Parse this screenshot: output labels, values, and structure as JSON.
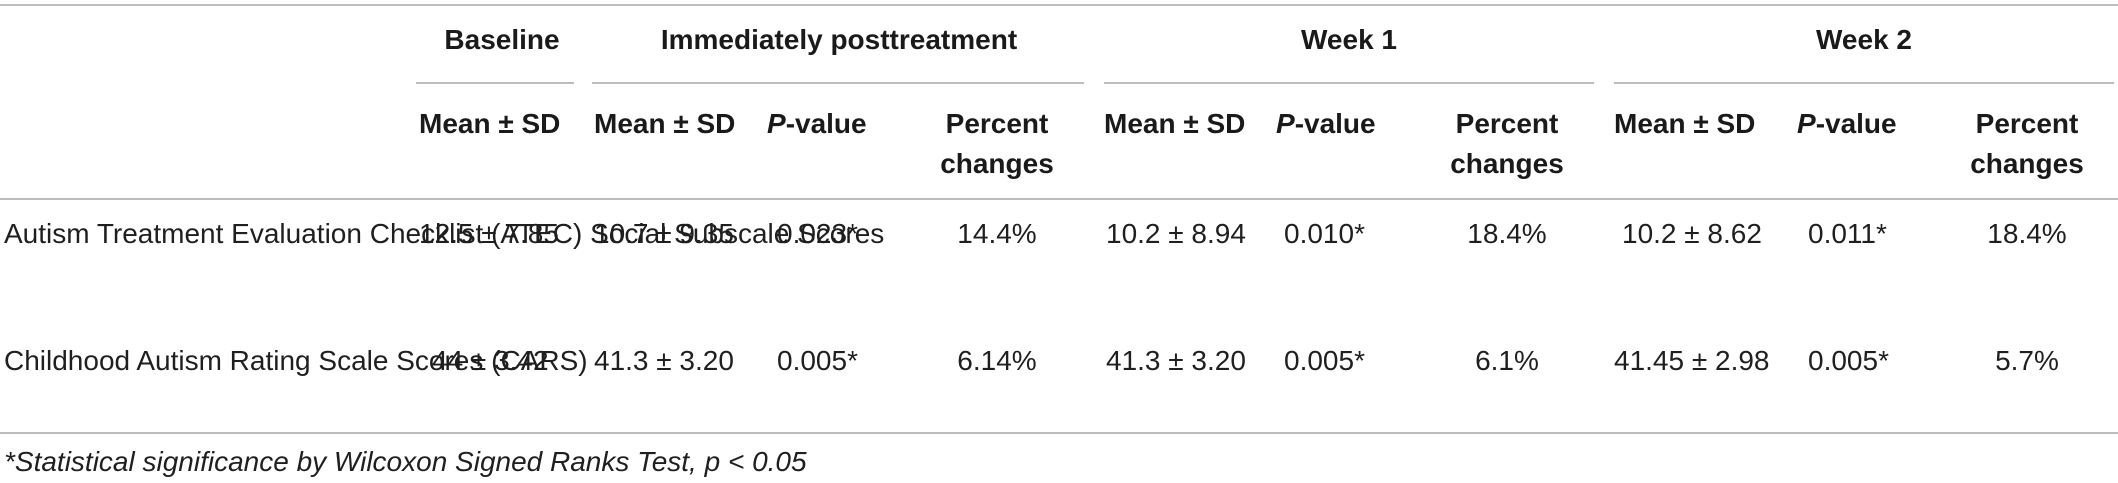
{
  "table": {
    "group_headers": {
      "baseline": "Baseline",
      "immediate": "Immediately posttreatment",
      "week1": "Week 1",
      "week2": "Week 2"
    },
    "sub_headers": {
      "mean_sd": "Mean ± SD",
      "p_value_italic": "P",
      "p_value_rest": "-value",
      "percent_line1": "Percent",
      "percent_line2": "changes"
    },
    "rows": [
      {
        "label": "Autism Treatment Evaluation Checklist (ATEC) Social Subscale Scores",
        "baseline": "12.5 ± 7.85",
        "immediate": {
          "mean_sd": "10.7 ± 9.35",
          "p": "0.023*",
          "pct": "14.4%"
        },
        "week1": {
          "mean_sd": "10.2 ± 8.94",
          "p": "0.010*",
          "pct": "18.4%"
        },
        "week2": {
          "mean_sd": "10.2 ± 8.62",
          "p": "0.011*",
          "pct": "18.4%"
        }
      },
      {
        "label": "Childhood Autism Rating Scale Scores (CARS)",
        "baseline": "44 ± 3.42",
        "immediate": {
          "mean_sd": "41.3 ± 3.20",
          "p": "0.005*",
          "pct": "6.14%"
        },
        "week1": {
          "mean_sd": "41.3 ± 3.20",
          "p": "0.005*",
          "pct": "6.1%"
        },
        "week2": {
          "mean_sd": "41.45 ± 2.98",
          "p": "0.005*",
          "pct": "5.7%"
        }
      }
    ],
    "footnote": "*Statistical significance by Wilcoxon Signed Ranks Test, p < 0.05"
  }
}
